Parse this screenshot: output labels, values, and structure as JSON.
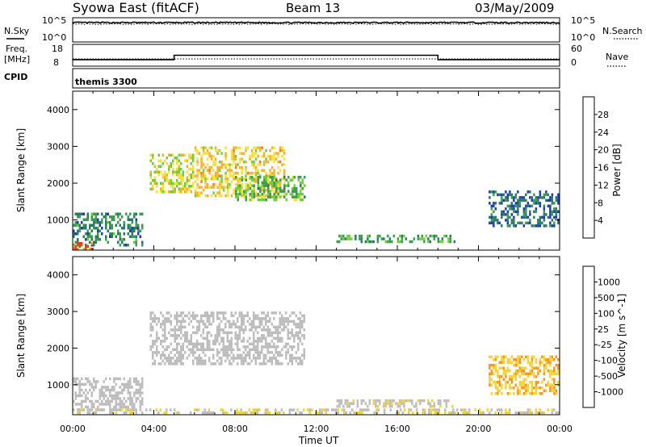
{
  "header": {
    "station": "Syowa East (fitACF)",
    "beam": "Beam 13",
    "date": "03/May/2009"
  },
  "labels": {
    "nsky": "N.Sky",
    "nsearch": "N.Search",
    "freq_line1": "Freq.",
    "freq_line2": "[MHz]",
    "nave": "Nave",
    "cpid": "CPID",
    "cpid_value": "themis 3300",
    "xlabel": "Time UT"
  },
  "axes": {
    "noise_ticks_left": [
      "10^5",
      "10^0"
    ],
    "noise_ticks_right": [
      "10^5",
      "10^0"
    ],
    "freq_ticks": [
      "18",
      "8"
    ],
    "nave_ticks": [
      "60",
      "0"
    ],
    "x_ticks": [
      "00:00",
      "04:00",
      "08:00",
      "12:00",
      "16:00",
      "20:00",
      "00:00"
    ],
    "y_ticks": [
      "1000",
      "2000",
      "3000",
      "4000"
    ]
  },
  "colors": {
    "power_scale": [
      "#0000ff",
      "#1f3fa0",
      "#2c7a66",
      "#3c9d50",
      "#6fcf3a",
      "#f4e23a",
      "#f2b12a",
      "#f07a1e",
      "#e84010",
      "#e00000"
    ],
    "velocity_scale": [
      "#e00000",
      "#f05010",
      "#f39a1e",
      "#f3d23a",
      "#bdbdbd",
      "#bdbdbd",
      "#6fcf3a",
      "#2e9b55",
      "#2a6f80",
      "#2040b0"
    ]
  },
  "chart_data": [
    {
      "type": "line",
      "title": "N.Sky / N.Search",
      "x_range_hours": [
        0,
        24
      ],
      "ylim_log10": [
        0,
        5
      ],
      "series": [
        {
          "name": "N.Sky",
          "x": [
            0,
            24
          ],
          "y_log10": [
            4.0,
            4.0
          ]
        },
        {
          "name": "N.Search",
          "x": [
            0,
            24
          ],
          "y_log10": [
            3.7,
            3.7
          ]
        }
      ]
    },
    {
      "type": "line",
      "title": "Freq. / Nave",
      "x_range_hours": [
        0,
        24
      ],
      "ylim_freq_mhz": [
        8,
        18
      ],
      "ylim_nave": [
        0,
        60
      ],
      "series": [
        {
          "name": "Freq.",
          "x": [
            0,
            5.0,
            5.0,
            18.0,
            18.0,
            24.0
          ],
          "y": [
            11,
            11,
            13,
            13,
            11,
            11
          ]
        },
        {
          "name": "Nave",
          "x": [
            0,
            24
          ],
          "y": [
            20,
            20
          ]
        }
      ]
    },
    {
      "type": "heatmap",
      "title": "Power [dB]",
      "xlabel": "Time UT",
      "ylabel": "Slant Range [km]",
      "x_range_hours": [
        0,
        24
      ],
      "ylim_km": [
        180,
        4500
      ],
      "colorbar": {
        "label": "Power [dB]",
        "ticks": [
          4,
          8,
          12,
          16,
          20,
          24,
          28
        ],
        "range": [
          0,
          30
        ]
      },
      "regions": [
        {
          "t": [
            0.0,
            3.5
          ],
          "r": [
            300,
            1200
          ],
          "level": 8
        },
        {
          "t": [
            3.8,
            6.0
          ],
          "r": [
            1700,
            2800
          ],
          "level": 16
        },
        {
          "t": [
            6.0,
            10.5
          ],
          "r": [
            1600,
            3000
          ],
          "level": 18
        },
        {
          "t": [
            8.0,
            11.5
          ],
          "r": [
            1500,
            2200
          ],
          "level": 12
        },
        {
          "t": [
            13.0,
            19.0
          ],
          "r": [
            350,
            600
          ],
          "level": 10
        },
        {
          "t": [
            20.5,
            24.0
          ],
          "r": [
            800,
            1800
          ],
          "level": 6
        },
        {
          "t": [
            0.0,
            1.0
          ],
          "r": [
            180,
            400
          ],
          "level": 24
        }
      ]
    },
    {
      "type": "heatmap",
      "title": "Velocity [m s^-1]",
      "xlabel": "Time UT",
      "ylabel": "Slant Range [km]",
      "x_range_hours": [
        0,
        24
      ],
      "ylim_km": [
        180,
        4500
      ],
      "colorbar": {
        "label": "Velocity [m s^-1]",
        "ticks": [
          1000,
          500,
          100,
          25,
          -25,
          -100,
          -500,
          -1000
        ]
      },
      "regions": [
        {
          "t": [
            0.0,
            3.5
          ],
          "r": [
            300,
            1200
          ],
          "v": 0
        },
        {
          "t": [
            3.8,
            11.5
          ],
          "r": [
            1500,
            3000
          ],
          "v": 0
        },
        {
          "t": [
            13.0,
            19.0
          ],
          "r": [
            350,
            600
          ],
          "v": -150
        },
        {
          "t": [
            20.5,
            24.0
          ],
          "r": [
            700,
            1800
          ],
          "v": -400
        },
        {
          "t": [
            0.0,
            24.0
          ],
          "r": [
            180,
            350
          ],
          "v": -200
        }
      ]
    }
  ]
}
